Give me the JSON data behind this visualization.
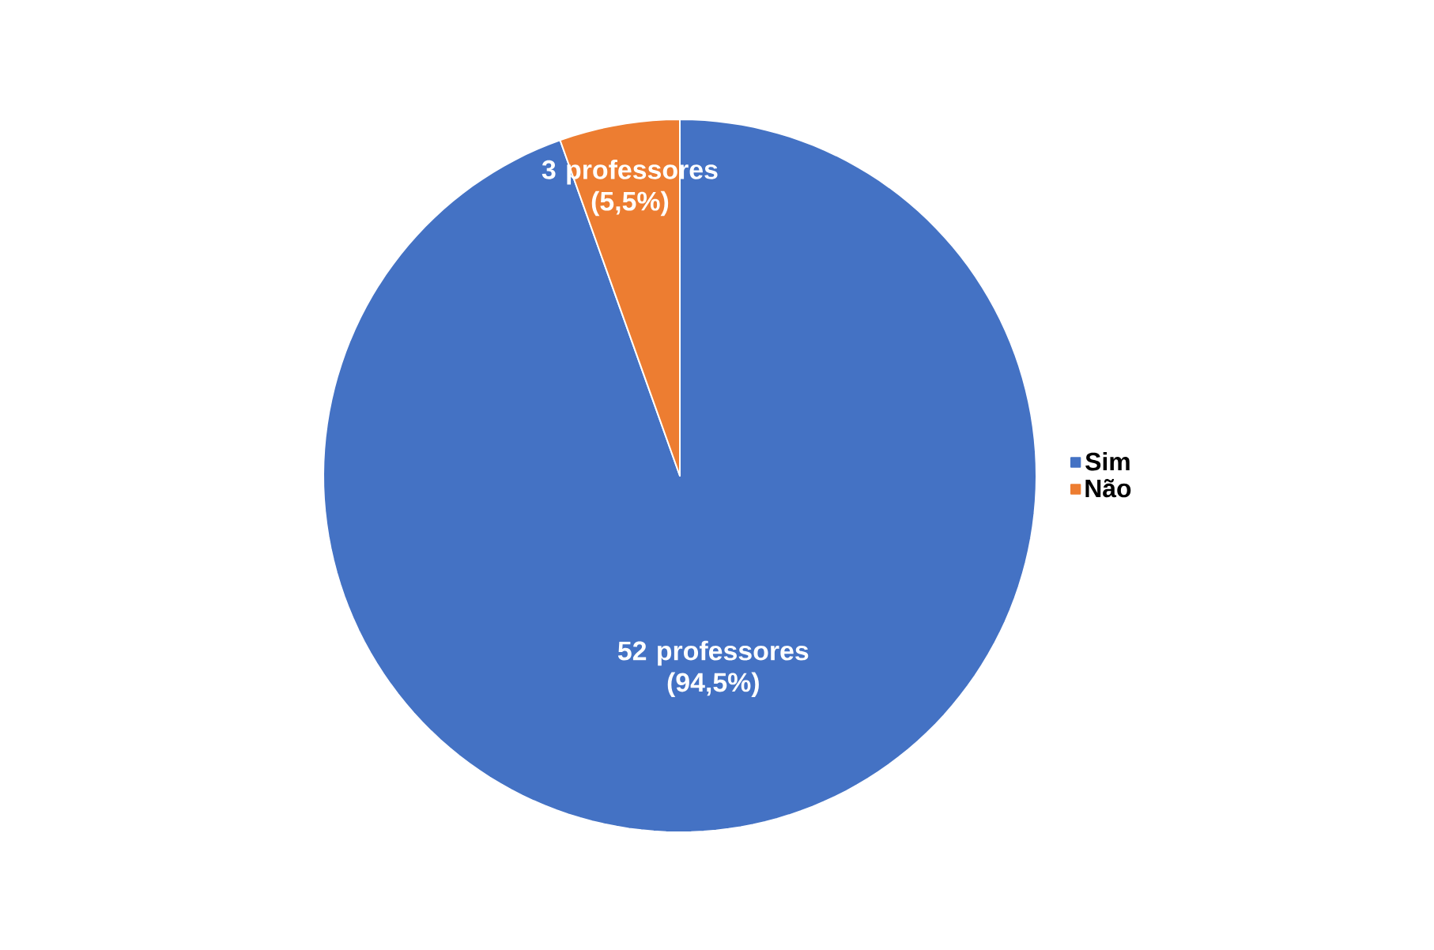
{
  "chart_data": {
    "type": "pie",
    "categories": [
      "Sim",
      "Não"
    ],
    "values": [
      52,
      3
    ],
    "colors": [
      "#4472c4",
      "#ed7d31"
    ],
    "value_labels": [
      "52 professores (94,5%)",
      "3 professores (5,5%)"
    ],
    "legend": "right"
  }
}
